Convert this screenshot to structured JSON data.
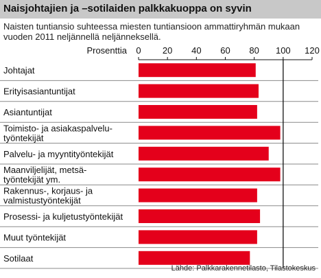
{
  "header": {
    "title": "Naisjohtajien ja –sotilaiden palkkakuoppa on syvin",
    "subtitle": "Naisten tuntiansio suhteessa miesten tuntiansioon ammattiryhmän mukaan vuoden 2011 neljännellä neljänneksellä."
  },
  "source": "Lähde: Palkkarakennetilasto, Tilastokeskus",
  "chart_data": {
    "type": "bar",
    "orientation": "horizontal",
    "xlabel": "Prosenttia",
    "ylabel": "",
    "xlim": [
      0,
      120
    ],
    "ticks": [
      0,
      20,
      40,
      60,
      80,
      100,
      120
    ],
    "reference_line": 100,
    "grid": false,
    "bar_color": "#e4001b",
    "row_separator_color": "#8a8a8a",
    "categories": [
      [
        "Johtajat"
      ],
      [
        "Erityisasiantuntijat"
      ],
      [
        "Asiantuntijat"
      ],
      [
        "Toimisto- ja asiakaspalvelu-",
        "työntekijät"
      ],
      [
        "Palvelu- ja myyntityöntekijät"
      ],
      [
        "Maanviljelijät, metsä-",
        "työntekijät ym."
      ],
      [
        "Rakennus-, korjaus- ja",
        "valmistustyöntekijät"
      ],
      [
        "Prosessi- ja kuljetustyöntekijät"
      ],
      [
        "Muut työntekijät"
      ],
      [
        "Sotilaat"
      ]
    ],
    "values": [
      81,
      83,
      82,
      98,
      90,
      98,
      82,
      84,
      82,
      77
    ]
  }
}
